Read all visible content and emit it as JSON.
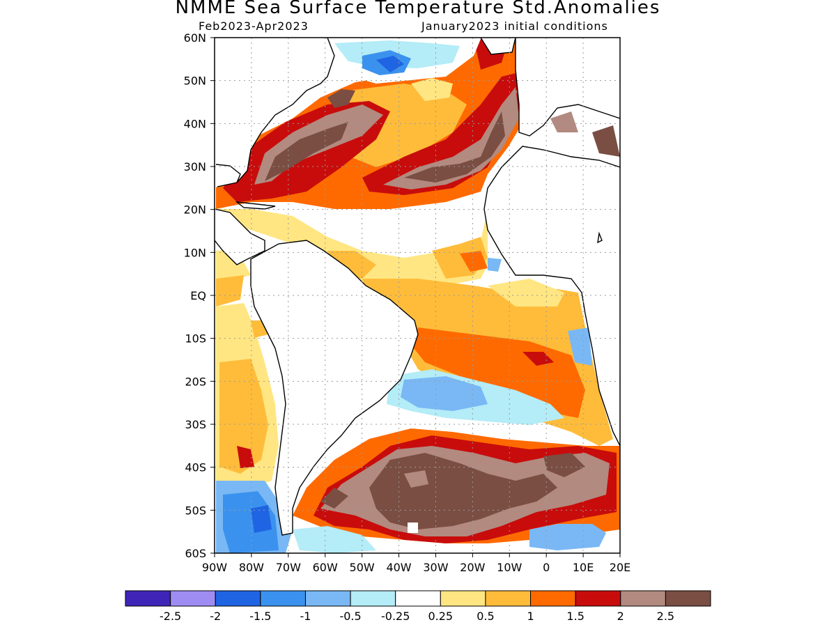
{
  "title": "NMME Sea Surface Temperature Std.Anomalies",
  "subtitle_left": "Feb2023-Apr2023",
  "subtitle_right": "January2023 initial conditions",
  "map": {
    "lon_range": [
      -90,
      20
    ],
    "lat_range": [
      -60,
      60
    ],
    "lat_ticks": [
      {
        "v": 60,
        "label": "60N"
      },
      {
        "v": 50,
        "label": "50N"
      },
      {
        "v": 40,
        "label": "40N"
      },
      {
        "v": 30,
        "label": "30N"
      },
      {
        "v": 20,
        "label": "20N"
      },
      {
        "v": 10,
        "label": "10N"
      },
      {
        "v": 0,
        "label": "EQ"
      },
      {
        "v": -10,
        "label": "10S"
      },
      {
        "v": -20,
        "label": "20S"
      },
      {
        "v": -30,
        "label": "30S"
      },
      {
        "v": -40,
        "label": "40S"
      },
      {
        "v": -50,
        "label": "50S"
      },
      {
        "v": -60,
        "label": "60S"
      }
    ],
    "lon_ticks": [
      {
        "v": -90,
        "label": "90W"
      },
      {
        "v": -80,
        "label": "80W"
      },
      {
        "v": -70,
        "label": "70W"
      },
      {
        "v": -60,
        "label": "60W"
      },
      {
        "v": -50,
        "label": "50W"
      },
      {
        "v": -40,
        "label": "40W"
      },
      {
        "v": -30,
        "label": "30W"
      },
      {
        "v": -20,
        "label": "20W"
      },
      {
        "v": -10,
        "label": "10W"
      },
      {
        "v": 0,
        "label": "0"
      },
      {
        "v": 10,
        "label": "10E"
      },
      {
        "v": 20,
        "label": "20E"
      }
    ]
  },
  "colorbar": {
    "colors": [
      "#3f24b8",
      "#9f8cf3",
      "#1f64e3",
      "#3b92ee",
      "#79b8f5",
      "#b4ecf7",
      "#ffffff",
      "#ffe682",
      "#ffbc3a",
      "#ff6a00",
      "#c80c0c",
      "#b28a7f",
      "#7a4e43"
    ],
    "labels": [
      "-2.5",
      "-2",
      "-1.5",
      "-1",
      "-0.5",
      "-0.25",
      "0.25",
      "0.5",
      "1",
      "1.5",
      "2",
      "2.5"
    ]
  }
}
